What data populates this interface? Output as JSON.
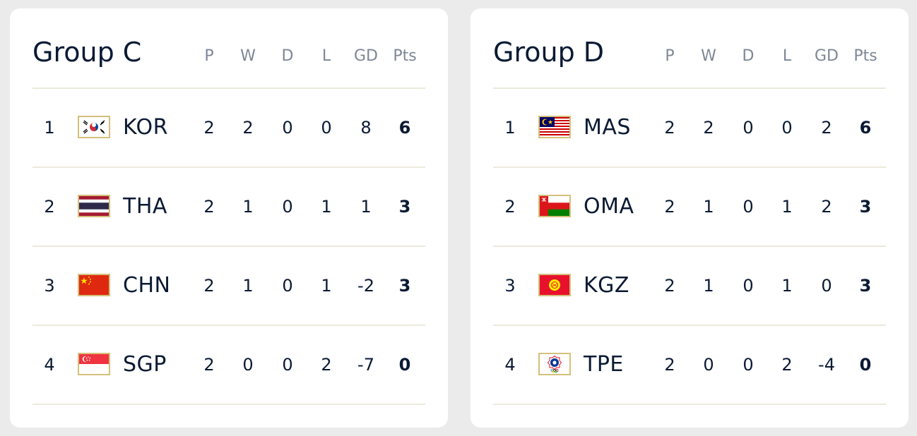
{
  "groups": [
    {
      "title": "Group C",
      "headers": [
        "P",
        "W",
        "D",
        "L",
        "GD",
        "Pts"
      ],
      "rows": [
        {
          "rank": "1",
          "team": "KOR",
          "flag_icon": "south-korea-flag-icon",
          "p": "2",
          "w": "2",
          "d": "0",
          "l": "0",
          "gd": "8",
          "pts": "6"
        },
        {
          "rank": "2",
          "team": "THA",
          "flag_icon": "thailand-flag-icon",
          "p": "2",
          "w": "1",
          "d": "0",
          "l": "1",
          "gd": "1",
          "pts": "3"
        },
        {
          "rank": "3",
          "team": "CHN",
          "flag_icon": "china-flag-icon",
          "p": "2",
          "w": "1",
          "d": "0",
          "l": "1",
          "gd": "-2",
          "pts": "3"
        },
        {
          "rank": "4",
          "team": "SGP",
          "flag_icon": "singapore-flag-icon",
          "p": "2",
          "w": "0",
          "d": "0",
          "l": "2",
          "gd": "-7",
          "pts": "0"
        }
      ]
    },
    {
      "title": "Group D",
      "headers": [
        "P",
        "W",
        "D",
        "L",
        "GD",
        "Pts"
      ],
      "rows": [
        {
          "rank": "1",
          "team": "MAS",
          "flag_icon": "malaysia-flag-icon",
          "p": "2",
          "w": "2",
          "d": "0",
          "l": "0",
          "gd": "2",
          "pts": "6"
        },
        {
          "rank": "2",
          "team": "OMA",
          "flag_icon": "oman-flag-icon",
          "p": "2",
          "w": "1",
          "d": "0",
          "l": "1",
          "gd": "2",
          "pts": "3"
        },
        {
          "rank": "3",
          "team": "KGZ",
          "flag_icon": "kyrgyzstan-flag-icon",
          "p": "2",
          "w": "1",
          "d": "0",
          "l": "1",
          "gd": "0",
          "pts": "3"
        },
        {
          "rank": "4",
          "team": "TPE",
          "flag_icon": "chinese-taipei-flag-icon",
          "p": "2",
          "w": "0",
          "d": "0",
          "l": "2",
          "gd": "-4",
          "pts": "0"
        }
      ]
    }
  ],
  "colors": {
    "page_background": "#ebebeb",
    "card_background": "#ffffff",
    "text": "#0b1a33",
    "header_text": "#7d8797",
    "divider": "#ece9dc",
    "flag_border": "#d4c07a"
  }
}
